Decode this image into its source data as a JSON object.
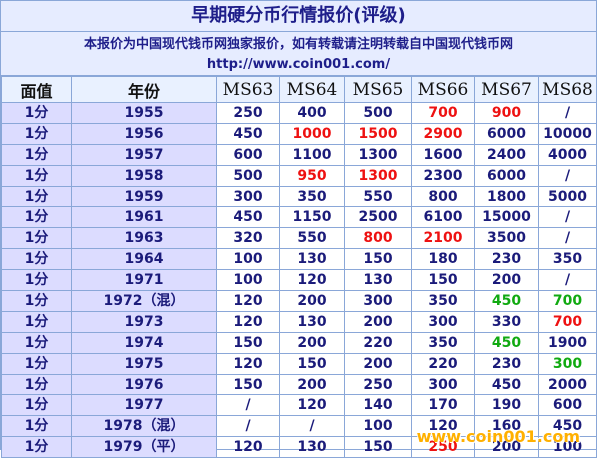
{
  "title": "早期硬分币行情报价(评级)",
  "notice": {
    "line1": "本报价为中国现代钱币网独家报价，如有转载请注明转载自中国现代钱币网",
    "line2": "http://www.coin001.com/"
  },
  "columns": [
    "面值",
    "年份",
    "MS63",
    "MS64",
    "MS65",
    "MS66",
    "MS67",
    "MS68"
  ],
  "rows": [
    {
      "denom": "1分",
      "year": "1955",
      "prices": [
        "250",
        "400",
        "500",
        "700",
        "900",
        "/"
      ]
    },
    {
      "denom": "1分",
      "year": "1956",
      "prices": [
        "450",
        "1000",
        "1500",
        "2900",
        "6000",
        "10000"
      ]
    },
    {
      "denom": "1分",
      "year": "1957",
      "prices": [
        "600",
        "1100",
        "1300",
        "1600",
        "2400",
        "4000"
      ]
    },
    {
      "denom": "1分",
      "year": "1958",
      "prices": [
        "500",
        "950",
        "1300",
        "2300",
        "6000",
        "/"
      ]
    },
    {
      "denom": "1分",
      "year": "1959",
      "prices": [
        "300",
        "350",
        "550",
        "800",
        "1800",
        "5000"
      ]
    },
    {
      "denom": "1分",
      "year": "1961",
      "prices": [
        "450",
        "1150",
        "2500",
        "6100",
        "15000",
        "/"
      ]
    },
    {
      "denom": "1分",
      "year": "1963",
      "prices": [
        "320",
        "550",
        "800",
        "2100",
        "3500",
        "/"
      ]
    },
    {
      "denom": "1分",
      "year": "1964",
      "prices": [
        "100",
        "130",
        "150",
        "180",
        "230",
        "350"
      ]
    },
    {
      "denom": "1分",
      "year": "1971",
      "prices": [
        "100",
        "120",
        "130",
        "150",
        "200",
        "/"
      ]
    },
    {
      "denom": "1分",
      "year": "1972（混）",
      "prices": [
        "120",
        "200",
        "300",
        "350",
        "450",
        "700"
      ]
    },
    {
      "denom": "1分",
      "year": "1973",
      "prices": [
        "120",
        "130",
        "200",
        "300",
        "330",
        "700"
      ]
    },
    {
      "denom": "1分",
      "year": "1974",
      "prices": [
        "150",
        "200",
        "220",
        "350",
        "450",
        "1900"
      ]
    },
    {
      "denom": "1分",
      "year": "1975",
      "prices": [
        "120",
        "150",
        "200",
        "220",
        "230",
        "300"
      ]
    },
    {
      "denom": "1分",
      "year": "1976",
      "prices": [
        "150",
        "200",
        "250",
        "300",
        "450",
        "2000"
      ]
    },
    {
      "denom": "1分",
      "year": "1977",
      "prices": [
        "/",
        "120",
        "140",
        "170",
        "190",
        "600"
      ]
    },
    {
      "denom": "1分",
      "year": "1978（混）",
      "prices": [
        "/",
        "/",
        "100",
        "120",
        "160",
        "450"
      ]
    },
    {
      "denom": "1分",
      "year": "1979（平）",
      "prices": [
        "120",
        "130",
        "150",
        "250",
        "200",
        "100"
      ]
    }
  ],
  "highlights": {
    "red": [
      [
        0,
        3
      ],
      [
        0,
        4
      ],
      [
        1,
        1
      ],
      [
        1,
        2
      ],
      [
        1,
        3
      ],
      [
        3,
        1
      ],
      [
        3,
        2
      ],
      [
        6,
        2
      ],
      [
        6,
        3
      ],
      [
        10,
        5
      ],
      [
        16,
        3
      ]
    ],
    "green": [
      [
        9,
        4
      ],
      [
        9,
        5
      ],
      [
        11,
        4
      ],
      [
        12,
        5
      ]
    ]
  },
  "colors": {
    "red": "#ee1111",
    "green": "#11aa11",
    "text": "#1b1b7a",
    "header_bg": "#e6ecff",
    "year_bg": "#dcdcff"
  },
  "watermark": "www.coin001.com"
}
